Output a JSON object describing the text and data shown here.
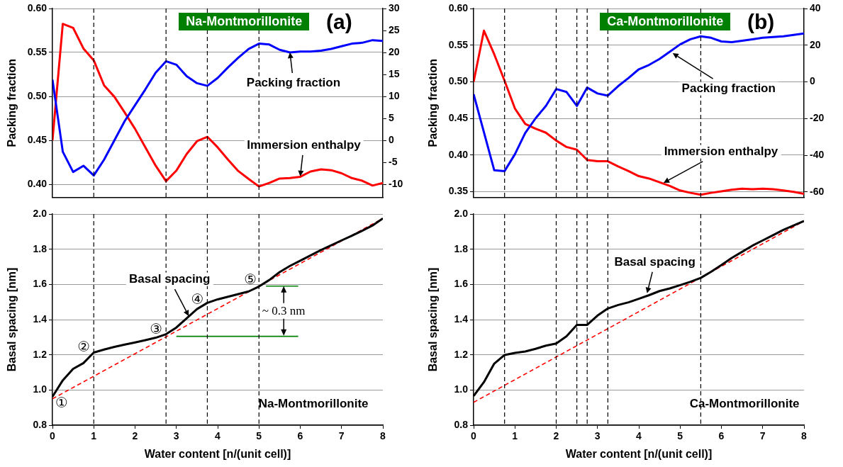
{
  "chart_data": [
    {
      "type": "line",
      "title": "(a)",
      "subtitle": "Na-Montmorillonite",
      "ylabel": "Packing fraction",
      "x": [
        0,
        0.25,
        0.5,
        0.75,
        1,
        1.25,
        1.5,
        1.75,
        2,
        2.25,
        2.5,
        2.75,
        3,
        3.25,
        3.5,
        3.75,
        4,
        4.25,
        4.5,
        4.75,
        5,
        5.25,
        5.5,
        5.75,
        6,
        6.25,
        6.5,
        6.75,
        7,
        7.25,
        7.5,
        7.75,
        8
      ],
      "xlim": [
        0,
        8
      ],
      "ylim": [
        0.385,
        0.6
      ],
      "yticks": [
        {
          "value": 0.4,
          "label": "0.40"
        },
        {
          "value": 0.45,
          "label": "0.45"
        },
        {
          "value": 0.5,
          "label": "0.50"
        },
        {
          "value": 0.55,
          "label": "0.55"
        },
        {
          "value": 0.6,
          "label": "0.60"
        }
      ],
      "y2lim": [
        -13,
        30
      ],
      "y2ticks": [
        -10,
        -5,
        0,
        5,
        10,
        15,
        20,
        25,
        30
      ],
      "tick_labels": "y",
      "grid": "y",
      "series": [
        {
          "color": "#0000ff",
          "values": [
            0.519,
            0.437,
            0.414,
            0.421,
            0.41,
            0.428,
            0.45,
            0.472,
            0.49,
            0.508,
            0.527,
            0.54,
            0.536,
            0.523,
            0.515,
            0.512,
            0.521,
            0.533,
            0.544,
            0.554,
            0.56,
            0.559,
            0.553,
            0.55,
            0.551,
            0.551,
            0.552,
            0.554,
            0.557,
            0.56,
            0.561,
            0.564,
            0.563
          ]
        },
        {
          "color": "#ff0000",
          "axis": "y2",
          "values": [
            0,
            26.5,
            25.6,
            20.9,
            18.2,
            12.5,
            9.9,
            6.3,
            2.6,
            -1.6,
            -5.8,
            -9.3,
            -6.9,
            -3.1,
            -0.2,
            0.8,
            -1.6,
            -4.4,
            -7.0,
            -8.8,
            -10.5,
            -9.7,
            -8.7,
            -8.6,
            -8.3,
            -7.1,
            -6.6,
            -6.8,
            -7.5,
            -8.6,
            -9.2,
            -10.3,
            -9.7
          ]
        }
      ],
      "ref_lines": [
        {
          "axis": "x",
          "value": 1,
          "color": "#000000",
          "line_style": "dashed"
        },
        {
          "axis": "x",
          "value": 2.75,
          "color": "#000000",
          "line_style": "dashed"
        },
        {
          "axis": "x",
          "value": 3.75,
          "color": "#000000",
          "line_style": "dashed"
        },
        {
          "axis": "x",
          "value": 5,
          "color": "#000000",
          "line_style": "dashed"
        }
      ],
      "annotations": [
        {
          "text": "Packing fraction",
          "x": 5.75,
          "y": 0.55
        },
        {
          "text": "Immersion enthalpy",
          "x": 6,
          "y": 0.409
        }
      ]
    },
    {
      "type": "line",
      "title": "(b)",
      "subtitle": "Ca-Montmorillonite",
      "ylabel": "Packing fraction",
      "x": [
        0,
        0.25,
        0.5,
        0.75,
        1,
        1.25,
        1.5,
        1.75,
        2,
        2.25,
        2.5,
        2.75,
        3,
        3.25,
        3.5,
        3.75,
        4,
        4.25,
        4.5,
        4.75,
        5,
        5.25,
        5.5,
        5.75,
        6,
        6.25,
        6.5,
        6.75,
        7,
        7.25,
        7.5,
        7.75,
        8
      ],
      "xlim": [
        0,
        8
      ],
      "ylim": [
        0.342,
        0.6
      ],
      "yticks": [
        {
          "value": 0.35,
          "label": "0.35"
        },
        {
          "value": 0.4,
          "label": "0.40"
        },
        {
          "value": 0.45,
          "label": "0.45"
        },
        {
          "value": 0.5,
          "label": "0.50"
        },
        {
          "value": 0.55,
          "label": "0.55"
        },
        {
          "value": 0.6,
          "label": "0.60"
        }
      ],
      "y2lim": [
        -63,
        40
      ],
      "y2ticks": [
        -60,
        -40,
        -20,
        0,
        20,
        40
      ],
      "tick_labels": "y",
      "grid": "y",
      "series": [
        {
          "color": "#0000ff",
          "values": [
            0.483,
            0.431,
            0.379,
            0.378,
            0.401,
            0.43,
            0.45,
            0.467,
            0.49,
            0.486,
            0.467,
            0.492,
            0.484,
            0.481,
            0.494,
            0.505,
            0.517,
            0.523,
            0.531,
            0.541,
            0.551,
            0.558,
            0.562,
            0.56,
            0.555,
            0.554,
            0.556,
            0.558,
            0.56,
            0.561,
            0.562,
            0.564,
            0.566
          ]
        },
        {
          "color": "#ff0000",
          "axis": "y2",
          "values": [
            0,
            27.9,
            15,
            0.6,
            -14.5,
            -22.9,
            -25.5,
            -27.7,
            -32,
            -35.5,
            -37,
            -42.6,
            -43.3,
            -43.3,
            -46.1,
            -48.6,
            -51.4,
            -52.7,
            -54.7,
            -56.7,
            -59.2,
            -60.5,
            -61.5,
            -60.5,
            -59.7,
            -58.8,
            -58.2,
            -58.5,
            -58.2,
            -58.5,
            -59.2,
            -60,
            -61
          ]
        }
      ],
      "ref_lines": [
        {
          "axis": "x",
          "value": 0.75,
          "color": "#000000",
          "line_style": "dashed"
        },
        {
          "axis": "x",
          "value": 2,
          "color": "#000000",
          "line_style": "dashed"
        },
        {
          "axis": "x",
          "value": 2.5,
          "color": "#000000",
          "line_style": "dashed"
        },
        {
          "axis": "x",
          "value": 2.75,
          "color": "#000000",
          "line_style": "dashed"
        },
        {
          "axis": "x",
          "value": 3.25,
          "color": "#000000",
          "line_style": "dashed"
        },
        {
          "axis": "x",
          "value": 5.5,
          "color": "#000000",
          "line_style": "dashed"
        }
      ],
      "annotations": [
        {
          "text": "Packing fraction",
          "x": 4.82,
          "y": 0.539
        },
        {
          "text": "Immersion enthalpy",
          "x": 4.6,
          "y": 0.362
        }
      ]
    },
    {
      "type": "line",
      "xlabel": "Water content [n/(unit cell)]",
      "ylabel": "Basal spacing [nm]",
      "x": [
        0,
        0.25,
        0.5,
        0.75,
        1,
        1.25,
        1.5,
        1.75,
        2,
        2.25,
        2.5,
        2.75,
        3,
        3.25,
        3.5,
        3.75,
        4,
        4.25,
        4.5,
        4.75,
        5,
        5.25,
        5.5,
        5.75,
        6,
        6.25,
        6.5,
        6.75,
        7,
        7.25,
        7.5,
        7.75,
        8
      ],
      "xlim": [
        0,
        8
      ],
      "xticks": [
        0,
        1,
        2,
        3,
        4,
        5,
        6,
        7,
        8
      ],
      "ylim": [
        0.8,
        2.0
      ],
      "yticks": [
        0.8,
        {
          "value": 1.0,
          "label": "1.0"
        },
        1.2,
        1.4,
        1.6,
        1.8,
        {
          "value": 2.0,
          "label": "2.0"
        }
      ],
      "grid": "y",
      "series": [
        {
          "color": "#000000",
          "values": [
            0.962,
            1.055,
            1.12,
            1.153,
            1.213,
            1.23,
            1.245,
            1.258,
            1.27,
            1.283,
            1.297,
            1.317,
            1.355,
            1.408,
            1.46,
            1.495,
            1.515,
            1.53,
            1.545,
            1.56,
            1.588,
            1.625,
            1.67,
            1.705,
            1.735,
            1.765,
            1.795,
            1.822,
            1.85,
            1.877,
            1.905,
            1.935,
            1.975
          ]
        },
        {
          "color": "#ff0000",
          "line_style": "dashed",
          "x": [
            0,
            8
          ],
          "values": [
            0.95,
            1.975
          ]
        },
        {
          "color": "#008000",
          "x": [
            5.17,
            5.95
          ],
          "values": [
            1.59,
            1.59
          ]
        },
        {
          "color": "#008000",
          "x": [
            3,
            5.95
          ],
          "values": [
            1.305,
            1.305
          ]
        }
      ],
      "ref_lines": [
        {
          "axis": "x",
          "value": 1,
          "color": "#000000",
          "line_style": "dashed"
        },
        {
          "axis": "x",
          "value": 2.75,
          "color": "#000000",
          "line_style": "dashed"
        },
        {
          "axis": "x",
          "value": 3.75,
          "color": "#000000",
          "line_style": "dashed"
        },
        {
          "axis": "x",
          "value": 5,
          "color": "#000000",
          "line_style": "dashed"
        }
      ],
      "annotations": [
        {
          "text": "Basal spacing",
          "x": 3.3,
          "y": 1.42
        },
        {
          "text": "①",
          "x": 0,
          "y": 0.962
        },
        {
          "text": "②",
          "x": 1,
          "y": 1.213
        },
        {
          "text": "③",
          "x": 2.75,
          "y": 1.317
        },
        {
          "text": "④",
          "x": 3.75,
          "y": 1.495
        },
        {
          "text": "⑤",
          "x": 5,
          "y": 1.588
        },
        {
          "text": "~ 0.3 nm",
          "x": 5.6,
          "y": 1.59
        },
        "Na-Montmorillonite"
      ]
    },
    {
      "type": "line",
      "xlabel": "Water content [n/(unit cell)]",
      "ylabel": "Basal spacing [nm]",
      "x": [
        0,
        0.25,
        0.5,
        0.75,
        1,
        1.25,
        1.5,
        1.75,
        2,
        2.25,
        2.5,
        2.75,
        3,
        3.25,
        3.5,
        3.75,
        4,
        4.25,
        4.5,
        4.75,
        5,
        5.25,
        5.5,
        5.75,
        6,
        6.25,
        6.5,
        6.75,
        7,
        7.25,
        7.5,
        7.75,
        8
      ],
      "xlim": [
        0,
        8
      ],
      "xticks": [
        0,
        1,
        2,
        3,
        4,
        5,
        6,
        7,
        8
      ],
      "ylim": [
        0.8,
        2.0
      ],
      "yticks": [
        0.8,
        {
          "value": 1.0,
          "label": "1.0"
        },
        1.2,
        1.4,
        1.6,
        1.8,
        {
          "value": 2.0,
          "label": "2.0"
        }
      ],
      "grid": "y",
      "series": [
        {
          "color": "#000000",
          "values": [
            0.966,
            1.045,
            1.15,
            1.199,
            1.211,
            1.219,
            1.234,
            1.252,
            1.264,
            1.305,
            1.37,
            1.37,
            1.423,
            1.463,
            1.483,
            1.498,
            1.518,
            1.539,
            1.562,
            1.577,
            1.596,
            1.615,
            1.637,
            1.672,
            1.71,
            1.75,
            1.785,
            1.82,
            1.85,
            1.88,
            1.91,
            1.935,
            1.96
          ]
        },
        {
          "color": "#ff0000",
          "line_style": "dashed",
          "x": [
            0,
            8
          ],
          "values": [
            0.93,
            1.96
          ]
        }
      ],
      "ref_lines": [
        {
          "axis": "x",
          "value": 0.75,
          "color": "#000000",
          "line_style": "dashed"
        },
        {
          "axis": "x",
          "value": 2,
          "color": "#000000",
          "line_style": "dashed"
        },
        {
          "axis": "x",
          "value": 2.5,
          "color": "#000000",
          "line_style": "dashed"
        },
        {
          "axis": "x",
          "value": 2.75,
          "color": "#000000",
          "line_style": "dashed"
        },
        {
          "axis": "x",
          "value": 3.25,
          "color": "#000000",
          "line_style": "dashed"
        },
        {
          "axis": "x",
          "value": 5.5,
          "color": "#000000",
          "line_style": "dashed"
        }
      ],
      "annotations": [
        {
          "text": "Basal spacing",
          "x": 4.2,
          "y": 1.55
        },
        "Ca-Montmorillonite"
      ]
    }
  ]
}
